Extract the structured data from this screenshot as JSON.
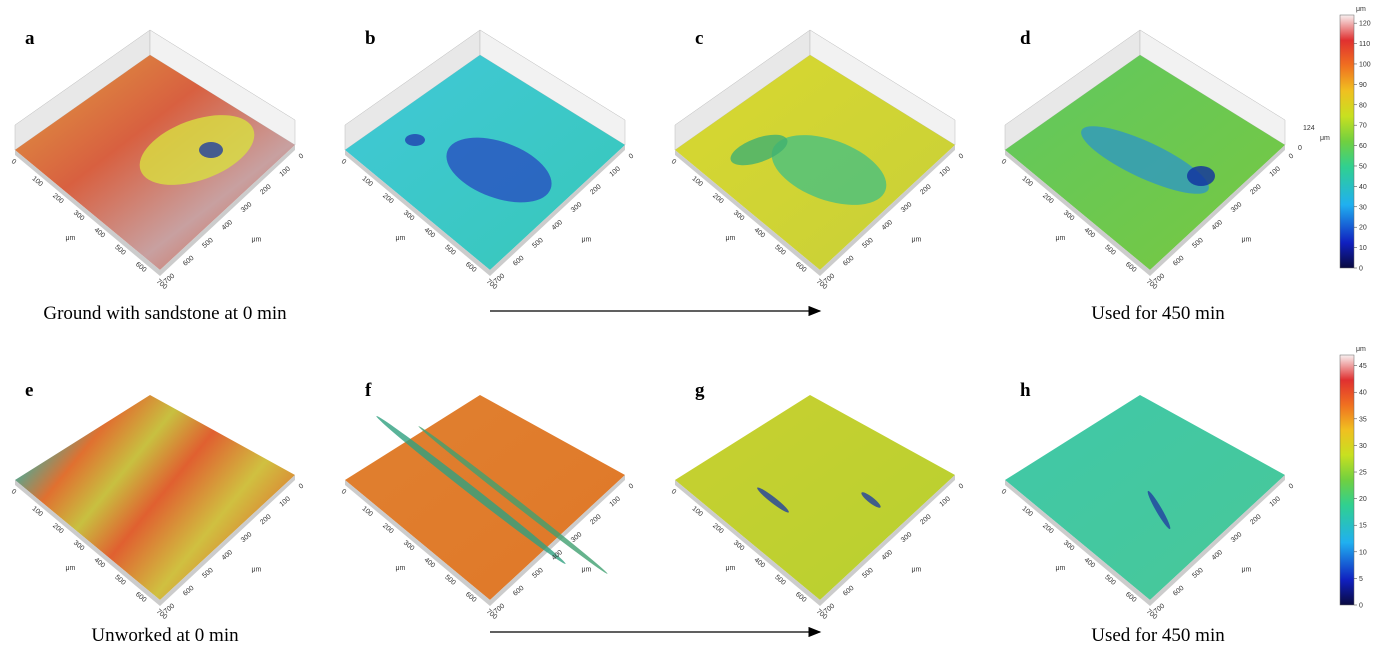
{
  "panels": [
    {
      "label": "a"
    },
    {
      "label": "b"
    },
    {
      "label": "c"
    },
    {
      "label": "d"
    },
    {
      "label": "e"
    },
    {
      "label": "f"
    },
    {
      "label": "g"
    },
    {
      "label": "h"
    }
  ],
  "captions": [
    "Ground with sandstone at 0 min",
    "Used for 450 min",
    "Unworked at 0 min",
    "Used for 450 min"
  ],
  "axis": {
    "ticks": [
      0,
      100,
      200,
      300,
      400,
      500,
      600,
      700
    ],
    "unit": "μm"
  },
  "height_annotation": {
    "top": "124",
    "bottom": "0",
    "unit": "μm"
  },
  "colorbars": [
    {
      "unit": "μm",
      "ticks": [
        0,
        10,
        20,
        30,
        40,
        50,
        60,
        70,
        80,
        90,
        100,
        110,
        120
      ],
      "max": 124
    },
    {
      "unit": "μm",
      "ticks": [
        0,
        5,
        10,
        15,
        20,
        25,
        30,
        35,
        40,
        45
      ],
      "max": 47
    }
  ]
}
